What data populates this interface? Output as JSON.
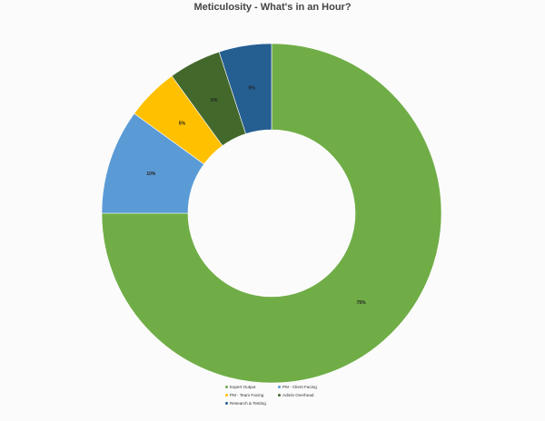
{
  "chart_data": {
    "type": "pie",
    "subtype": "donut",
    "title": "Meticulosity - What's in an Hour?",
    "categories": [
      "Expert Output",
      "PM - Client Facing",
      "PM - Team Facing",
      "Admin Overhead",
      "Research & Testing"
    ],
    "values": [
      75,
      10,
      5,
      5,
      5
    ],
    "data_labels": [
      "75%",
      "10%",
      "5%",
      "5%",
      "5%"
    ],
    "colors": [
      "#70ad47",
      "#5b9bd5",
      "#ffc000",
      "#43682b",
      "#255e91"
    ],
    "legend_position": "bottom"
  }
}
